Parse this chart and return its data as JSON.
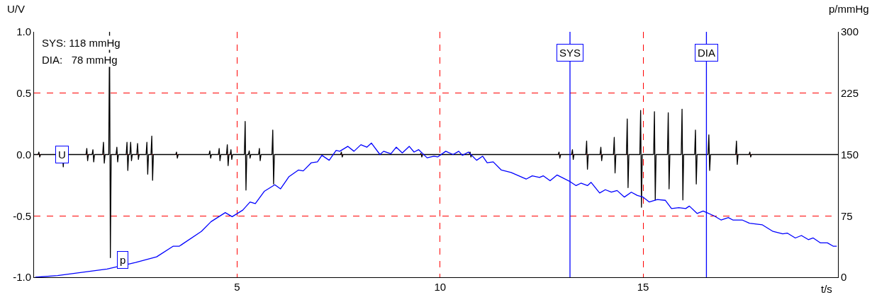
{
  "chart_data": {
    "type": "line",
    "xlabel": "t/s",
    "ylabel": "U/V",
    "y2label": "p/mmHg",
    "annotations": [
      "SYS: 118 mmHg",
      "DIA:   78 mmHg"
    ],
    "xlim": [
      0,
      19.8
    ],
    "xticks": [
      5,
      10,
      15
    ],
    "ylim": [
      -1,
      1
    ],
    "yticks": [
      {
        "value": -1,
        "label": "-1.0"
      },
      {
        "value": -0.5,
        "label": "-0.5"
      },
      {
        "value": 0,
        "label": "0.0"
      },
      {
        "value": 0.5,
        "label": "0.5"
      },
      {
        "value": 1,
        "label": "1.0"
      }
    ],
    "y2lim": [
      0,
      300
    ],
    "y2ticks": [
      0,
      75,
      150,
      225,
      300
    ],
    "grid": true,
    "legend": false,
    "marker": "none",
    "line_style": "solid",
    "ref_lines": [
      {
        "axis": "x",
        "value": 13.2,
        "label": "SYS",
        "color": "#0000ff"
      },
      {
        "axis": "x",
        "value": 16.56,
        "label": "DIA",
        "color": "#0000ff"
      }
    ],
    "series": [
      {
        "name": "U",
        "color": "#000000",
        "x": [
          0,
          0.1,
          0.12,
          0.14,
          0.16,
          0.68,
          0.7,
          0.72,
          0.74,
          1.28,
          1.3,
          1.32,
          1.34,
          1.43,
          1.45,
          1.47,
          1.49,
          1.69,
          1.71,
          1.73,
          1.75,
          1.84,
          1.86,
          1.88,
          1.9,
          2.02,
          2.04,
          2.06,
          2.08,
          2.27,
          2.29,
          2.31,
          2.33,
          2.36,
          2.38,
          2.4,
          2.42,
          2.53,
          2.55,
          2.57,
          2.59,
          2.76,
          2.78,
          2.8,
          2.82,
          2.88,
          2.9,
          2.92,
          2.94,
          3.49,
          3.51,
          3.53,
          3.55,
          4.31,
          4.33,
          4.35,
          4.37,
          4.54,
          4.56,
          4.58,
          4.6,
          4.74,
          4.76,
          4.78,
          4.8,
          4.83,
          4.85,
          4.87,
          4.89,
          5.18,
          5.2,
          5.22,
          5.24,
          5.28,
          5.3,
          5.32,
          5.34,
          5.53,
          5.55,
          5.57,
          5.59,
          5.86,
          5.88,
          5.9,
          5.92,
          7.55,
          7.57,
          7.59,
          7.61,
          9.51,
          9.53,
          9.55,
          9.57,
          10.72,
          10.74,
          10.76,
          10.78,
          12.91,
          12.93,
          12.95,
          12.97,
          13.24,
          13.26,
          13.28,
          13.3,
          13.59,
          13.61,
          13.63,
          13.65,
          13.94,
          13.96,
          13.98,
          14.0,
          14.27,
          14.29,
          14.31,
          14.33,
          14.59,
          14.61,
          14.63,
          14.65,
          14.92,
          14.94,
          14.96,
          14.98,
          15.26,
          15.28,
          15.3,
          15.32,
          15.6,
          15.62,
          15.64,
          15.66,
          15.94,
          15.96,
          15.98,
          16.0,
          16.27,
          16.29,
          16.31,
          16.33,
          16.6,
          16.62,
          16.64,
          16.66,
          17.28,
          17.3,
          17.32,
          17.34,
          17.61,
          17.63,
          17.65,
          17.67,
          19.8
        ],
        "values": [
          0,
          0,
          0.02,
          -0.02,
          0,
          0,
          0.01,
          -0.1,
          0,
          0,
          0.05,
          -0.05,
          0,
          0,
          0.04,
          -0.06,
          0,
          0,
          0.1,
          -0.07,
          0,
          0,
          1.0,
          -0.84,
          0,
          0,
          0.06,
          -0.06,
          0,
          0,
          0.1,
          -0.13,
          0,
          0,
          0.1,
          -0.05,
          0,
          0,
          0.09,
          -0.04,
          0,
          0,
          0.1,
          -0.16,
          0,
          0,
          0.15,
          -0.21,
          0,
          0,
          0.02,
          -0.03,
          0,
          0,
          0.03,
          -0.03,
          0,
          0,
          0.05,
          -0.05,
          0,
          0,
          0.08,
          -0.09,
          0,
          0,
          0.04,
          -0.04,
          0,
          0,
          0.27,
          -0.29,
          0,
          0,
          0.03,
          -0.03,
          0,
          0,
          0.05,
          -0.05,
          0,
          0,
          0.2,
          -0.24,
          0,
          0,
          0.02,
          -0.02,
          0,
          0,
          0.01,
          -0.02,
          0,
          0,
          0.02,
          -0.02,
          0,
          0,
          0.02,
          -0.03,
          0,
          0,
          0.04,
          -0.04,
          0,
          0,
          0.11,
          -0.12,
          0,
          0,
          0.06,
          -0.05,
          0,
          0,
          0.14,
          -0.15,
          0,
          0,
          0.29,
          -0.27,
          0,
          0,
          0.36,
          -0.43,
          0,
          0,
          0.35,
          -0.37,
          0,
          0,
          0.34,
          -0.28,
          0,
          0,
          0.37,
          -0.37,
          0,
          0,
          0.2,
          -0.24,
          0,
          0,
          0.16,
          -0.13,
          0,
          0,
          0.11,
          -0.08,
          0,
          0,
          0.02,
          -0.02,
          0,
          0
        ]
      },
      {
        "name": "p",
        "color": "#0000ff",
        "axis": "y2",
        "x": [
          0.03,
          0.58,
          1.8,
          2.5,
          3.02,
          3.43,
          3.58,
          4.12,
          4.36,
          4.71,
          4.88,
          5.14,
          5.32,
          5.45,
          5.67,
          5.93,
          6.07,
          6.28,
          6.51,
          6.63,
          6.83,
          6.98,
          7.09,
          7.27,
          7.44,
          7.53,
          7.73,
          7.88,
          8.05,
          8.2,
          8.31,
          8.52,
          8.61,
          8.79,
          8.92,
          9.07,
          9.24,
          9.36,
          9.47,
          9.68,
          9.85,
          9.94,
          10.14,
          10.32,
          10.46,
          10.55,
          10.7,
          10.9,
          11.05,
          11.16,
          11.31,
          11.51,
          11.75,
          12.12,
          12.27,
          12.45,
          12.54,
          12.71,
          12.88,
          13.2,
          13.35,
          13.47,
          13.63,
          13.72,
          13.93,
          14.07,
          14.22,
          14.36,
          14.54,
          14.71,
          14.86,
          15.0,
          15.15,
          15.35,
          15.55,
          15.7,
          15.88,
          16.05,
          16.14,
          16.33,
          16.48,
          16.75,
          16.92,
          17.1,
          17.21,
          17.44,
          17.62,
          17.94,
          18.2,
          18.44,
          18.55,
          18.75,
          18.9,
          19.07,
          19.19,
          19.37,
          19.54,
          19.68,
          19.77
        ],
        "values": [
          0,
          2,
          10,
          18,
          25,
          38,
          38,
          56,
          68,
          79,
          74,
          82,
          92,
          90,
          105,
          113,
          108,
          123,
          131,
          130,
          140,
          141,
          149,
          143,
          155,
          154,
          160,
          154,
          162,
          159,
          164,
          150,
          154,
          151,
          159,
          152,
          160,
          153,
          156,
          146,
          148,
          147,
          154,
          150,
          154,
          149,
          153,
          143,
          148,
          140,
          141,
          131,
          128,
          120,
          124,
          122,
          124,
          118,
          125,
          117,
          112,
          115,
          112,
          116,
          103,
          107,
          104,
          106,
          98,
          104,
          100,
          98,
          92,
          95,
          94,
          84,
          85,
          84,
          87,
          78,
          81,
          75,
          70,
          73,
          70,
          70,
          66,
          64,
          56,
          53,
          54,
          48,
          51,
          46,
          48,
          42,
          42,
          38,
          38
        ]
      }
    ]
  }
}
